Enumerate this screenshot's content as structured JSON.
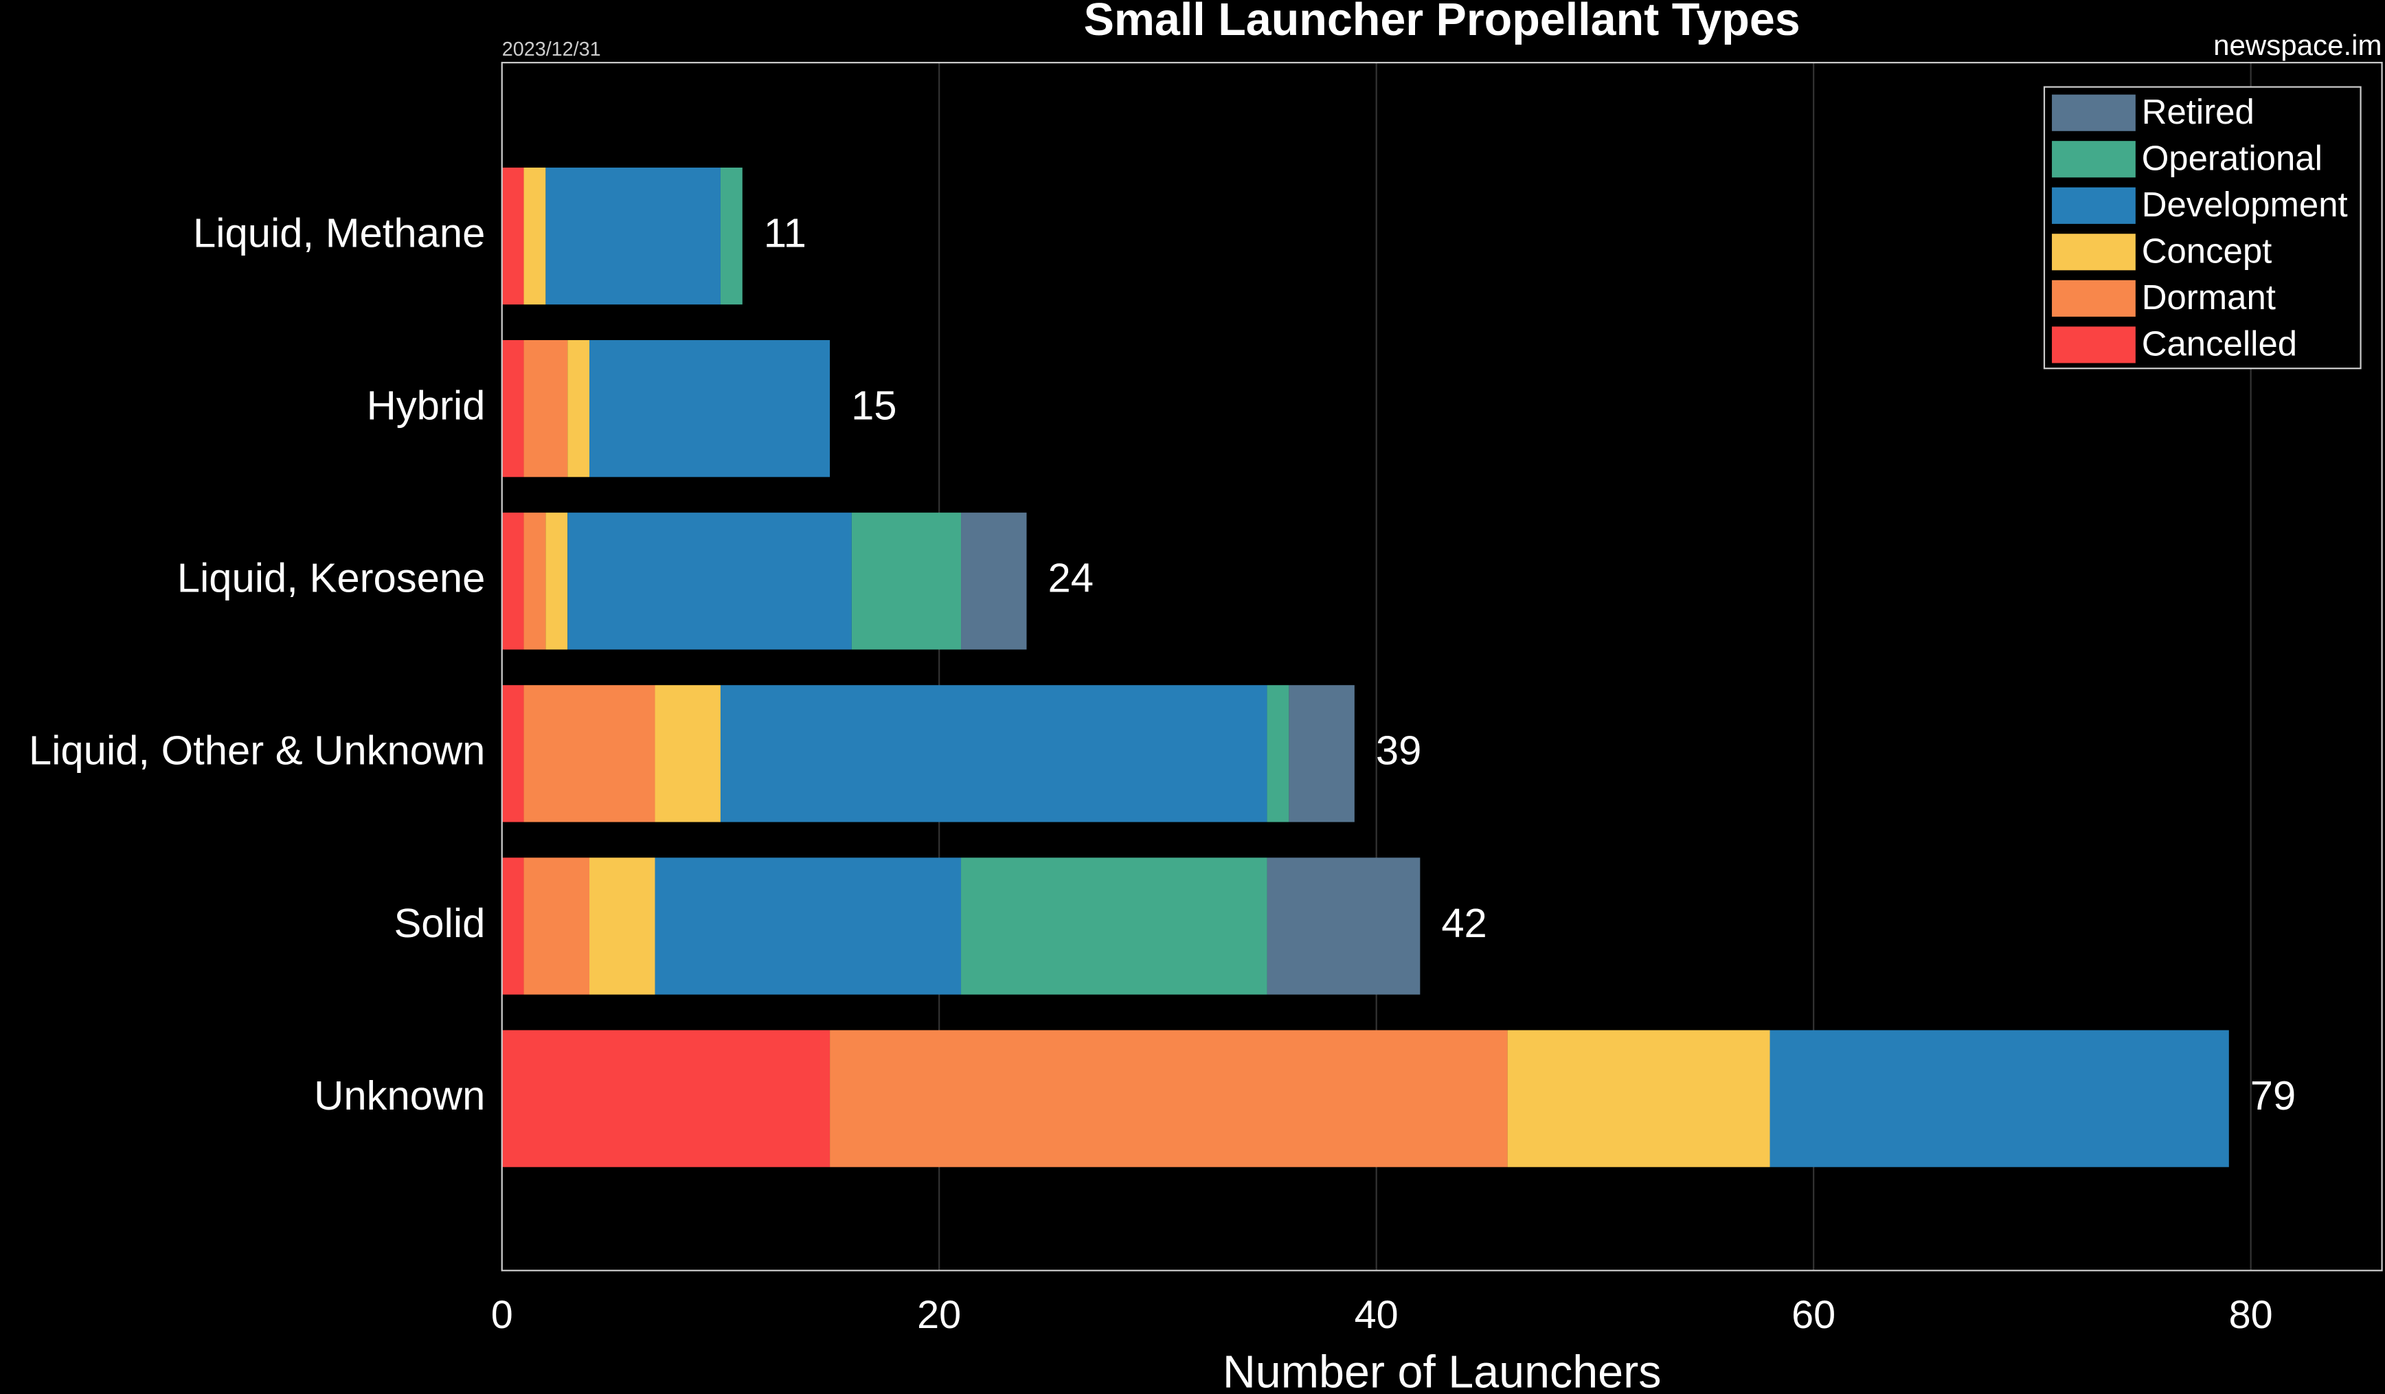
{
  "chart_data": {
    "type": "stacked-bar-horizontal",
    "title": "Small Launcher Propellant Types",
    "date": "2023/12/31",
    "source": "newspace.im",
    "x_label": "Number of Launchers",
    "categories": [
      "Liquid, Methane",
      "Hybrid",
      "Liquid, Kerosene",
      "Liquid, Other & Unknown",
      "Solid",
      "Unknown"
    ],
    "series": [
      {
        "name": "Cancelled",
        "color": "#fa4343",
        "values": [
          1,
          1,
          1,
          1,
          1,
          15
        ]
      },
      {
        "name": "Dormant",
        "color": "#f8874b",
        "values": [
          0,
          2,
          1,
          6,
          3,
          31
        ]
      },
      {
        "name": "Concept",
        "color": "#f9c74f",
        "values": [
          1,
          1,
          1,
          3,
          3,
          12
        ]
      },
      {
        "name": "Development",
        "color": "#277fb8",
        "values": [
          8,
          11,
          13,
          25,
          14,
          21
        ]
      },
      {
        "name": "Operational",
        "color": "#43aa8b",
        "values": [
          1,
          0,
          5,
          1,
          14,
          0
        ]
      },
      {
        "name": "Retired",
        "color": "#577590",
        "values": [
          0,
          0,
          3,
          3,
          7,
          0
        ]
      }
    ],
    "totals": [
      11,
      15,
      24,
      39,
      42,
      79
    ],
    "xlim": [
      0,
      86
    ],
    "xticks": [
      0,
      20,
      40,
      60,
      80
    ],
    "grid": true,
    "legend": "upper-right"
  }
}
